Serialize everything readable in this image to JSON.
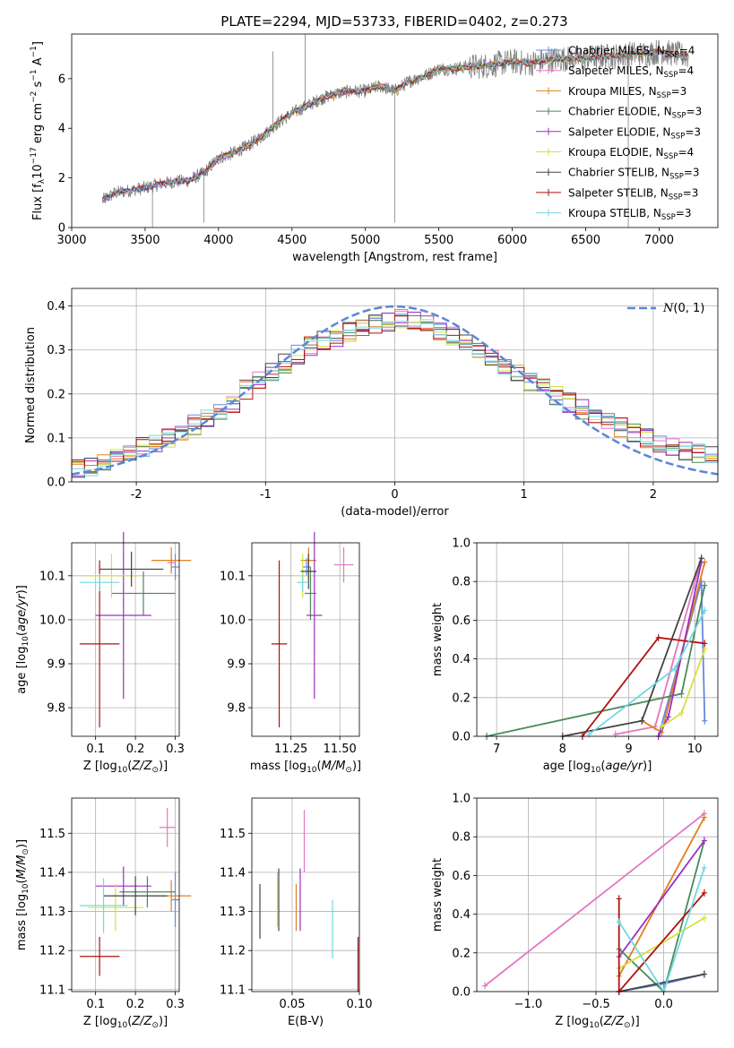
{
  "chart_data": [
    {
      "type": "line",
      "id": "spectrum",
      "title": "PLATE=2294, MJD=53733, FIBERID=0402, z=0.273",
      "xlabel": "wavelength [Angstrom, rest frame]",
      "ylabel": "Flux [f_λ 10^-17 erg cm^-2 s^-1 A^-1]",
      "xlim": [
        3000,
        7400
      ],
      "ylim": [
        0,
        7.8
      ],
      "xticks": [
        3000,
        3500,
        4000,
        4500,
        5000,
        5500,
        6000,
        6500,
        7000
      ],
      "yticks": [
        0,
        2,
        4,
        6
      ],
      "grid": false,
      "legend": "top-right",
      "series": [
        {
          "name": "Chabrier MILES, N_SSP=4",
          "color": "#6688dd"
        },
        {
          "name": "Salpeter MILES, N_SSP=4",
          "color": "#e377c2"
        },
        {
          "name": "Kroupa MILES, N_SSP=3",
          "color": "#e08020"
        },
        {
          "name": "Chabrier ELODIE, N_SSP=3",
          "color": "#4a8a5a"
        },
        {
          "name": "Salpeter ELODIE, N_SSP=3",
          "color": "#9b30c0"
        },
        {
          "name": "Kroupa ELODIE, N_SSP=4",
          "color": "#d8e040"
        },
        {
          "name": "Chabrier STELIB, N_SSP=3",
          "color": "#444444"
        },
        {
          "name": "Salpeter STELIB, N_SSP=3",
          "color": "#b01010"
        },
        {
          "name": "Kroupa STELIB, N_SSP=3",
          "color": "#70d8e0"
        }
      ],
      "data_color": "#808080",
      "x": [
        3210,
        3300,
        3400,
        3500,
        3600,
        3700,
        3800,
        3900,
        3950,
        4000,
        4100,
        4200,
        4300,
        4400,
        4500,
        4600,
        4700,
        4800,
        4900,
        5000,
        5100,
        5200,
        5300,
        5400,
        5500,
        5600,
        5700,
        5800,
        5900,
        6000,
        6100,
        6200,
        6300,
        6400,
        6500,
        6600,
        6700,
        6800,
        6900,
        7000,
        7100,
        7200
      ],
      "y": [
        1.1,
        1.4,
        1.5,
        1.6,
        1.75,
        1.85,
        1.9,
        2.2,
        2.5,
        2.8,
        3.0,
        3.3,
        3.7,
        4.2,
        4.6,
        4.9,
        5.2,
        5.4,
        5.5,
        5.5,
        5.7,
        5.5,
        5.9,
        6.1,
        6.4,
        6.4,
        6.5,
        6.5,
        6.6,
        6.7,
        6.6,
        6.7,
        6.8,
        6.8,
        6.8,
        6.9,
        6.9,
        7.0,
        7.0,
        7.1,
        7.0,
        6.9
      ]
    },
    {
      "type": "bar",
      "id": "residuals",
      "xlabel": "(data-model)/error",
      "ylabel": "Normed distribution",
      "xlim": [
        -2.5,
        2.5
      ],
      "ylim": [
        0,
        0.44
      ],
      "xticks": [
        -2,
        -1,
        0,
        1,
        2
      ],
      "yticks": [
        0.0,
        0.1,
        0.2,
        0.3,
        0.4
      ],
      "grid": true,
      "legend": "top-right",
      "legend_label": "N(0,1)",
      "gauss_color": "#5b86d8",
      "bin_edges": [
        -2.5,
        -2.4,
        -2.3,
        -2.2,
        -2.1,
        -2.0,
        -1.9,
        -1.8,
        -1.7,
        -1.6,
        -1.5,
        -1.4,
        -1.3,
        -1.2,
        -1.1,
        -1.0,
        -0.9,
        -0.8,
        -0.7,
        -0.6,
        -0.5,
        -0.4,
        -0.3,
        -0.2,
        -0.1,
        0.0,
        0.1,
        0.2,
        0.3,
        0.4,
        0.5,
        0.6,
        0.7,
        0.8,
        0.9,
        1.0,
        1.1,
        1.2,
        1.3,
        1.4,
        1.5,
        1.6,
        1.7,
        1.8,
        1.9,
        2.0,
        2.1,
        2.2,
        2.3,
        2.4,
        2.5
      ],
      "hist_mean": [
        0.03,
        0.032,
        0.04,
        0.055,
        0.07,
        0.08,
        0.085,
        0.1,
        0.115,
        0.13,
        0.145,
        0.16,
        0.18,
        0.21,
        0.23,
        0.25,
        0.27,
        0.29,
        0.31,
        0.32,
        0.33,
        0.34,
        0.355,
        0.36,
        0.365,
        0.37,
        0.365,
        0.36,
        0.345,
        0.33,
        0.315,
        0.3,
        0.28,
        0.26,
        0.245,
        0.23,
        0.215,
        0.195,
        0.18,
        0.165,
        0.15,
        0.14,
        0.125,
        0.11,
        0.1,
        0.09,
        0.08,
        0.07,
        0.065,
        0.06
      ]
    },
    {
      "type": "scatter",
      "id": "age-vs-Z",
      "xlabel": "Z [log10(Z/Z⊙)]",
      "ylabel": "age [log10(age/yr)]",
      "xlim": [
        0.04,
        0.31
      ],
      "ylim": [
        9.735,
        10.175
      ],
      "xticks": [
        0.1,
        0.2,
        0.3
      ],
      "yticks": [
        9.8,
        9.9,
        10.0,
        10.1
      ],
      "grid": true,
      "points": [
        {
          "series": 0,
          "x": 0.3,
          "y": 10.12,
          "xerr": 0.01,
          "yerr": 0.03
        },
        {
          "series": 1,
          "x": 0.29,
          "y": 10.13,
          "xerr": 0.01,
          "yerr": 0.02
        },
        {
          "series": 2,
          "x": 0.29,
          "y": 10.135,
          "xerr": 0.05,
          "yerr": 0.03
        },
        {
          "series": 3,
          "x": 0.22,
          "y": 10.06,
          "xerr": 0.08,
          "yerr": 0.05
        },
        {
          "series": 4,
          "x": 0.17,
          "y": 10.01,
          "xerr": 0.07,
          "yerr": 0.19
        },
        {
          "series": 5,
          "x": 0.14,
          "y": 10.1,
          "xerr": 0.07,
          "yerr": 0.05
        },
        {
          "series": 6,
          "x": 0.19,
          "y": 10.115,
          "xerr": 0.08,
          "yerr": 0.04
        },
        {
          "series": 7,
          "x": 0.11,
          "y": 9.945,
          "xerr": 0.05,
          "yerr": 0.19
        },
        {
          "series": 8,
          "x": 0.11,
          "y": 10.085,
          "xerr": 0.05,
          "yerr": 0.02
        }
      ]
    },
    {
      "type": "scatter",
      "id": "age-vs-mass",
      "xlabel": "mass [log10(M/M⊙)]",
      "ylabel": "",
      "xlim": [
        11.05,
        11.6
      ],
      "ylim": [
        9.735,
        10.175
      ],
      "xticks": [
        11.25,
        11.5
      ],
      "yticks": [
        9.8,
        9.9,
        10.0,
        10.1
      ],
      "grid": true,
      "points": [
        {
          "series": 0,
          "x": 11.33,
          "y": 10.12,
          "xerr": 0.02,
          "yerr": 0.02
        },
        {
          "series": 1,
          "x": 11.52,
          "y": 10.125,
          "xerr": 0.05,
          "yerr": 0.04
        },
        {
          "series": 2,
          "x": 11.34,
          "y": 10.135,
          "xerr": 0.04,
          "yerr": 0.03
        },
        {
          "series": 3,
          "x": 11.35,
          "y": 10.06,
          "xerr": 0.03,
          "yerr": 0.06
        },
        {
          "series": 4,
          "x": 11.37,
          "y": 10.01,
          "xerr": 0.04,
          "yerr": 0.19
        },
        {
          "series": 5,
          "x": 11.31,
          "y": 10.1,
          "xerr": 0.04,
          "yerr": 0.05
        },
        {
          "series": 6,
          "x": 11.34,
          "y": 10.11,
          "xerr": 0.04,
          "yerr": 0.04
        },
        {
          "series": 7,
          "x": 11.19,
          "y": 9.945,
          "xerr": 0.04,
          "yerr": 0.19
        },
        {
          "series": 8,
          "x": 11.31,
          "y": 10.085,
          "xerr": 0.03,
          "yerr": 0.02
        }
      ]
    },
    {
      "type": "line",
      "id": "weight-vs-age",
      "xlabel": "age [log10(age/yr)]",
      "ylabel": "mass weight",
      "xlim": [
        6.7,
        10.35
      ],
      "ylim": [
        0,
        1
      ],
      "xticks": [
        7,
        8,
        9,
        10
      ],
      "yticks": [
        0.0,
        0.2,
        0.4,
        0.6,
        0.8,
        1.0
      ],
      "grid": true,
      "series": [
        {
          "series": 0,
          "points": [
            [
              9.45,
              0.0
            ],
            [
              10.1,
              0.8
            ],
            [
              10.15,
              0.08
            ]
          ]
        },
        {
          "series": 1,
          "points": [
            [
              8.8,
              0.01
            ],
            [
              9.4,
              0.05
            ],
            [
              10.1,
              0.92
            ]
          ]
        },
        {
          "series": 2,
          "points": [
            [
              9.2,
              0.08
            ],
            [
              9.5,
              0.02
            ],
            [
              10.15,
              0.9
            ]
          ]
        },
        {
          "series": 3,
          "points": [
            [
              6.85,
              0.0
            ],
            [
              9.8,
              0.22
            ],
            [
              10.15,
              0.78
            ]
          ]
        },
        {
          "series": 4,
          "points": [
            [
              9.45,
              0.0
            ],
            [
              9.6,
              0.1
            ],
            [
              10.1,
              0.9
            ]
          ]
        },
        {
          "series": 5,
          "points": [
            [
              9.5,
              0.05
            ],
            [
              9.8,
              0.12
            ],
            [
              10.15,
              0.45
            ]
          ]
        },
        {
          "series": 6,
          "points": [
            [
              8.0,
              0.0
            ],
            [
              9.2,
              0.08
            ],
            [
              10.1,
              0.92
            ]
          ]
        },
        {
          "series": 7,
          "points": [
            [
              8.3,
              0.0
            ],
            [
              9.45,
              0.51
            ],
            [
              10.15,
              0.48
            ]
          ]
        },
        {
          "series": 8,
          "points": [
            [
              8.4,
              0.01
            ],
            [
              9.7,
              0.35
            ],
            [
              10.15,
              0.65
            ]
          ]
        }
      ]
    },
    {
      "type": "scatter",
      "id": "mass-vs-Z",
      "xlabel": "Z [log10(Z/Z⊙)]",
      "ylabel": "mass [log10(M/M⊙)]",
      "xlim": [
        0.04,
        0.31
      ],
      "ylim": [
        11.095,
        11.59
      ],
      "xticks": [
        0.1,
        0.2,
        0.3
      ],
      "yticks": [
        11.1,
        11.2,
        11.3,
        11.4,
        11.5
      ],
      "grid": true,
      "points": [
        {
          "series": 0,
          "x": 0.3,
          "y": 11.33,
          "xerr": 0.01,
          "yerr": 0.07
        },
        {
          "series": 1,
          "x": 0.28,
          "y": 11.515,
          "xerr": 0.02,
          "yerr": 0.05
        },
        {
          "series": 2,
          "x": 0.29,
          "y": 11.34,
          "xerr": 0.05,
          "yerr": 0.04
        },
        {
          "series": 3,
          "x": 0.23,
          "y": 11.35,
          "xerr": 0.07,
          "yerr": 0.04
        },
        {
          "series": 4,
          "x": 0.17,
          "y": 11.365,
          "xerr": 0.07,
          "yerr": 0.05
        },
        {
          "series": 5,
          "x": 0.15,
          "y": 11.31,
          "xerr": 0.07,
          "yerr": 0.06
        },
        {
          "series": 6,
          "x": 0.2,
          "y": 11.34,
          "xerr": 0.08,
          "yerr": 0.05
        },
        {
          "series": 7,
          "x": 0.11,
          "y": 11.185,
          "xerr": 0.05,
          "yerr": 0.05
        },
        {
          "series": 8,
          "x": 0.12,
          "y": 11.315,
          "xerr": 0.06,
          "yerr": 0.07
        }
      ]
    },
    {
      "type": "scatter",
      "id": "mass-vs-EBV",
      "xlabel": "E(B-V)",
      "ylabel": "",
      "xlim": [
        0.02,
        0.1
      ],
      "ylim": [
        11.095,
        11.59
      ],
      "xticks": [
        0.05,
        0.1
      ],
      "yticks": [
        11.1,
        11.2,
        11.3,
        11.4,
        11.5
      ],
      "grid": true,
      "points": [
        {
          "series": 6,
          "x": 0.026,
          "y": 11.3,
          "xerr": 0,
          "yerr": 0.07
        },
        {
          "series": 5,
          "x": 0.039,
          "y": 11.33,
          "xerr": 0,
          "yerr": 0.07
        },
        {
          "series": 6,
          "x": 0.04,
          "y": 11.33,
          "xerr": 0,
          "yerr": 0.08
        },
        {
          "series": 2,
          "x": 0.053,
          "y": 11.31,
          "xerr": 0,
          "yerr": 0.06
        },
        {
          "series": 4,
          "x": 0.056,
          "y": 11.33,
          "xerr": 0,
          "yerr": 0.08
        },
        {
          "series": 1,
          "x": 0.059,
          "y": 11.48,
          "xerr": 0,
          "yerr": 0.08
        },
        {
          "series": 8,
          "x": 0.08,
          "y": 11.255,
          "xerr": 0,
          "yerr": 0.075
        },
        {
          "series": 7,
          "x": 0.099,
          "y": 11.165,
          "xerr": 0,
          "yerr": 0.07
        }
      ]
    },
    {
      "type": "line",
      "id": "weight-vs-Z",
      "xlabel": "Z [log10(Z/Z⊙)]",
      "ylabel": "mass weight",
      "xlim": [
        -1.38,
        0.4
      ],
      "ylim": [
        0,
        1
      ],
      "xticks": [
        -1.0,
        -0.5,
        0.0
      ],
      "yticks": [
        0.0,
        0.2,
        0.4,
        0.6,
        0.8,
        1.0
      ],
      "grid": true,
      "series": [
        {
          "series": 0,
          "points": [
            [
              -0.33,
              0.0
            ],
            [
              0.0,
              0.04
            ],
            [
              0.3,
              0.09
            ]
          ]
        },
        {
          "series": 1,
          "points": [
            [
              -1.32,
              0.03
            ],
            [
              0.3,
              0.92
            ]
          ]
        },
        {
          "series": 2,
          "points": [
            [
              -0.33,
              0.08
            ],
            [
              0.3,
              0.9
            ]
          ]
        },
        {
          "series": 3,
          "points": [
            [
              -0.33,
              0.22
            ],
            [
              0.0,
              0.0
            ],
            [
              0.3,
              0.78
            ]
          ]
        },
        {
          "series": 4,
          "points": [
            [
              -0.33,
              0.18
            ],
            [
              0.3,
              0.78
            ]
          ]
        },
        {
          "series": 5,
          "points": [
            [
              -0.33,
              0.12
            ],
            [
              0.3,
              0.38
            ]
          ]
        },
        {
          "series": 6,
          "points": [
            [
              -0.33,
              0.0
            ],
            [
              0.3,
              0.09
            ]
          ]
        },
        {
          "series": 7,
          "points": [
            [
              -0.33,
              0.48
            ],
            [
              -0.33,
              0.0
            ],
            [
              0.3,
              0.51
            ]
          ]
        },
        {
          "series": 8,
          "points": [
            [
              -0.33,
              0.36
            ],
            [
              0.0,
              0.0
            ],
            [
              0.3,
              0.64
            ]
          ]
        }
      ]
    }
  ]
}
